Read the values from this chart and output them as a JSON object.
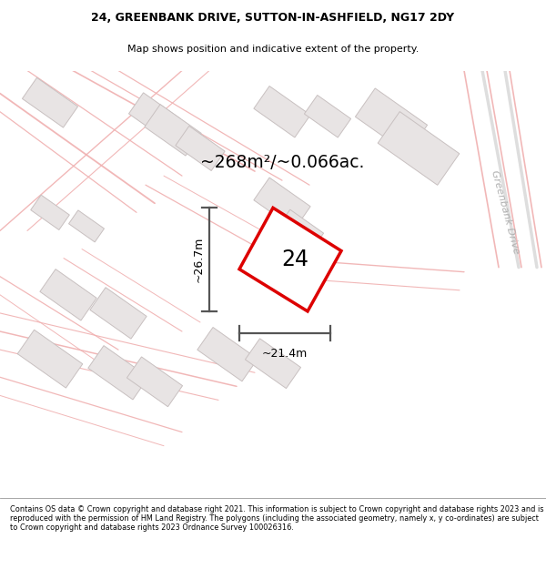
{
  "title_line1": "24, GREENBANK DRIVE, SUTTON-IN-ASHFIELD, NG17 2DY",
  "title_line2": "Map shows position and indicative extent of the property.",
  "area_text": "~268m²/~0.066ac.",
  "number_label": "24",
  "width_label": "~21.4m",
  "height_label": "~26.7m",
  "street_label": "Greenbank Drive",
  "footer_text": "Contains OS data © Crown copyright and database right 2021. This information is subject to Crown copyright and database rights 2023 and is reproduced with the permission of HM Land Registry. The polygons (including the associated geometry, namely x, y co-ordinates) are subject to Crown copyright and database rights 2023 Ordnance Survey 100026316.",
  "bg_color": "#f9f7f7",
  "map_bg_color": "#f9f7f7",
  "plot_outline_color": "#dd0000",
  "dim_line_color": "#555555",
  "building_fill": "#e8e4e4",
  "building_outline": "#c8c0c0",
  "road_line_color": "#f0b0b0",
  "greenbank_road_color": "#c8c8c8"
}
